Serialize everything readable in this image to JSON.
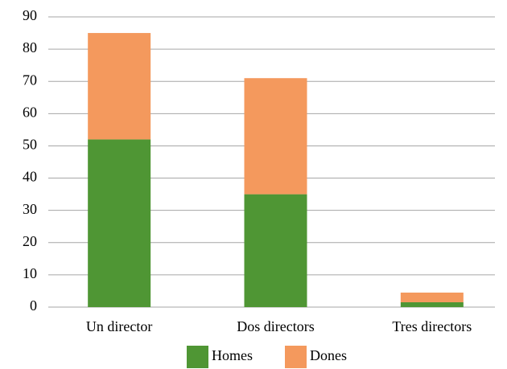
{
  "chart_data": {
    "type": "stacked_bar",
    "categories": [
      "Un director",
      "Dos directors",
      "Tres directors"
    ],
    "series": [
      {
        "name": "Homes",
        "color": "#4f9634",
        "values": [
          52,
          35,
          1.5
        ]
      },
      {
        "name": "Dones",
        "color": "#f4995d",
        "values": [
          33,
          36,
          3
        ]
      }
    ],
    "ylim": [
      0,
      90
    ],
    "yticks": [
      0,
      10,
      20,
      30,
      40,
      50,
      60,
      70,
      80,
      90
    ],
    "grid": true,
    "legend": "bottom"
  }
}
